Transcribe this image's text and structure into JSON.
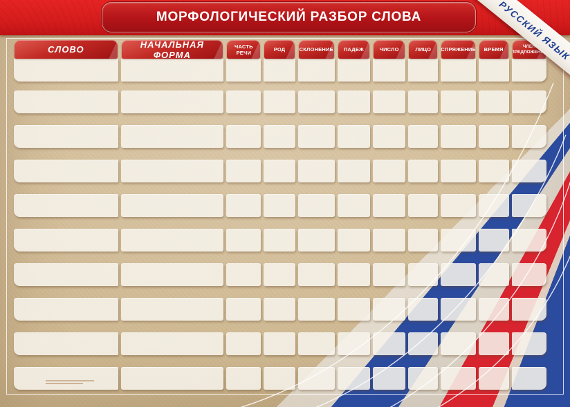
{
  "poster": {
    "title": "МОРФОЛОГИЧЕСКИЙ РАЗБОР СЛОВА",
    "corner_ribbon": "РУССКИЙ ЯЗЫК",
    "colors": {
      "banner_red": "#c81719",
      "tab_red_top": "#dd5a50",
      "tab_red_bottom": "#9d1113",
      "flag_blue": "#2b4b9e",
      "flag_red": "#d8242f",
      "paper_kraft": "#d2bc96",
      "cell_white": "#f4f0e8",
      "ribbon_text_blue": "#1c3d8f"
    }
  },
  "table": {
    "columns": [
      {
        "key": "slovo",
        "label": "СЛОВО",
        "size": "big"
      },
      {
        "key": "nachalnaya-forma",
        "label": "НАЧАЛЬНАЯ ФОРМА",
        "size": "big"
      },
      {
        "key": "chast-rechi",
        "label": "ЧАСТЬ РЕЧИ",
        "size": "small"
      },
      {
        "key": "rod",
        "label": "РОД",
        "size": "small"
      },
      {
        "key": "sklonenie",
        "label": "СКЛОНЕНИЕ",
        "size": "small"
      },
      {
        "key": "padezh",
        "label": "ПАДЕЖ",
        "size": "small"
      },
      {
        "key": "chislo",
        "label": "ЧИСЛО",
        "size": "small"
      },
      {
        "key": "litso",
        "label": "ЛИЦО",
        "size": "small"
      },
      {
        "key": "spryazhenie",
        "label": "СПРЯЖЕНИЕ",
        "size": "small"
      },
      {
        "key": "vremya",
        "label": "ВРЕМЯ",
        "size": "small"
      },
      {
        "key": "chlen-predlozheniya",
        "label": "ЧЛЕН ПРЕДЛОЖЕНИЯ",
        "size": "tiny"
      }
    ],
    "row_count": 10,
    "cell_value": ""
  }
}
